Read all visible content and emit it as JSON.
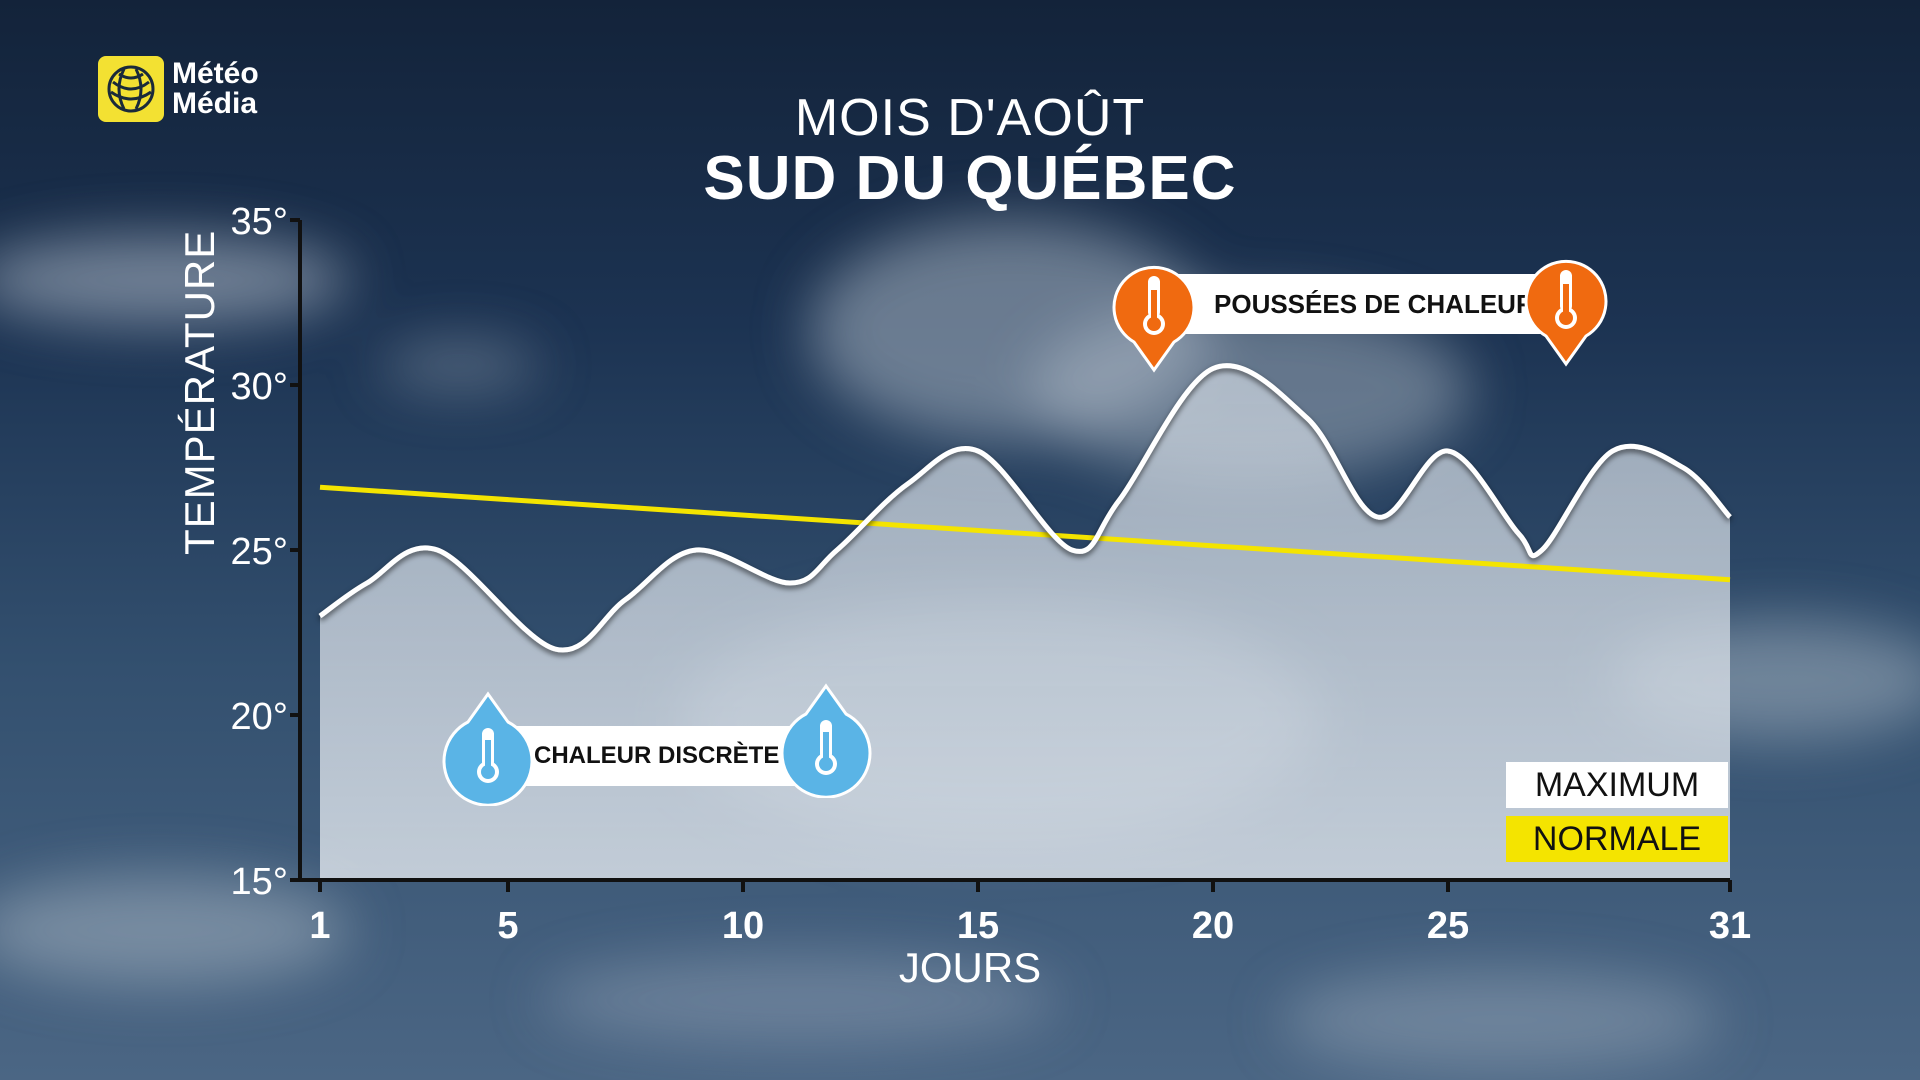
{
  "brand": {
    "line1": "Météo",
    "line2": "Média"
  },
  "title": {
    "line1": "MOIS D'AOÛT",
    "line2": "SUD DU QUÉBEC"
  },
  "colors": {
    "maximum": "#ffffff",
    "normale": "#f4e400",
    "hot": "#f06a10",
    "cool": "#5ab4e6"
  },
  "icons": {
    "hot": "thermometer-hot-icon",
    "cool": "thermometer-cool-icon",
    "logo": "globe-icon"
  },
  "callouts": {
    "hot": "POUSSÉES DE CHALEUR",
    "cool": "CHALEUR DISCRÈTE"
  },
  "legend": {
    "maximum": "MAXIMUM",
    "normale": "NORMALE"
  },
  "chart_data": {
    "type": "line",
    "xlabel": "JOURS",
    "ylabel": "TEMPÉRATURE",
    "x_ticks": [
      1,
      5,
      10,
      15,
      20,
      25,
      31
    ],
    "y_ticks": [
      15,
      20,
      25,
      30,
      35
    ],
    "y_tick_labels": [
      "15°",
      "20°",
      "25°",
      "30°",
      "35°"
    ],
    "xlim": [
      1,
      31
    ],
    "ylim": [
      15,
      35
    ],
    "grid": false,
    "legend_position": "bottom-right",
    "series": [
      {
        "name": "MAXIMUM",
        "x": [
          1,
          2,
          3.5,
          6,
          7.5,
          9,
          11,
          12,
          13.5,
          15,
          17,
          18,
          20,
          22,
          23.5,
          25,
          26.5,
          27,
          28.5,
          30,
          31
        ],
        "y": [
          23,
          24,
          25,
          22,
          23.5,
          25,
          24,
          25,
          27,
          28,
          25,
          26.5,
          30.5,
          29,
          26,
          28,
          25.5,
          25,
          28,
          27.5,
          26
        ]
      },
      {
        "name": "NORMALE",
        "x": [
          1,
          31
        ],
        "y": [
          26.9,
          24.1
        ]
      }
    ]
  }
}
